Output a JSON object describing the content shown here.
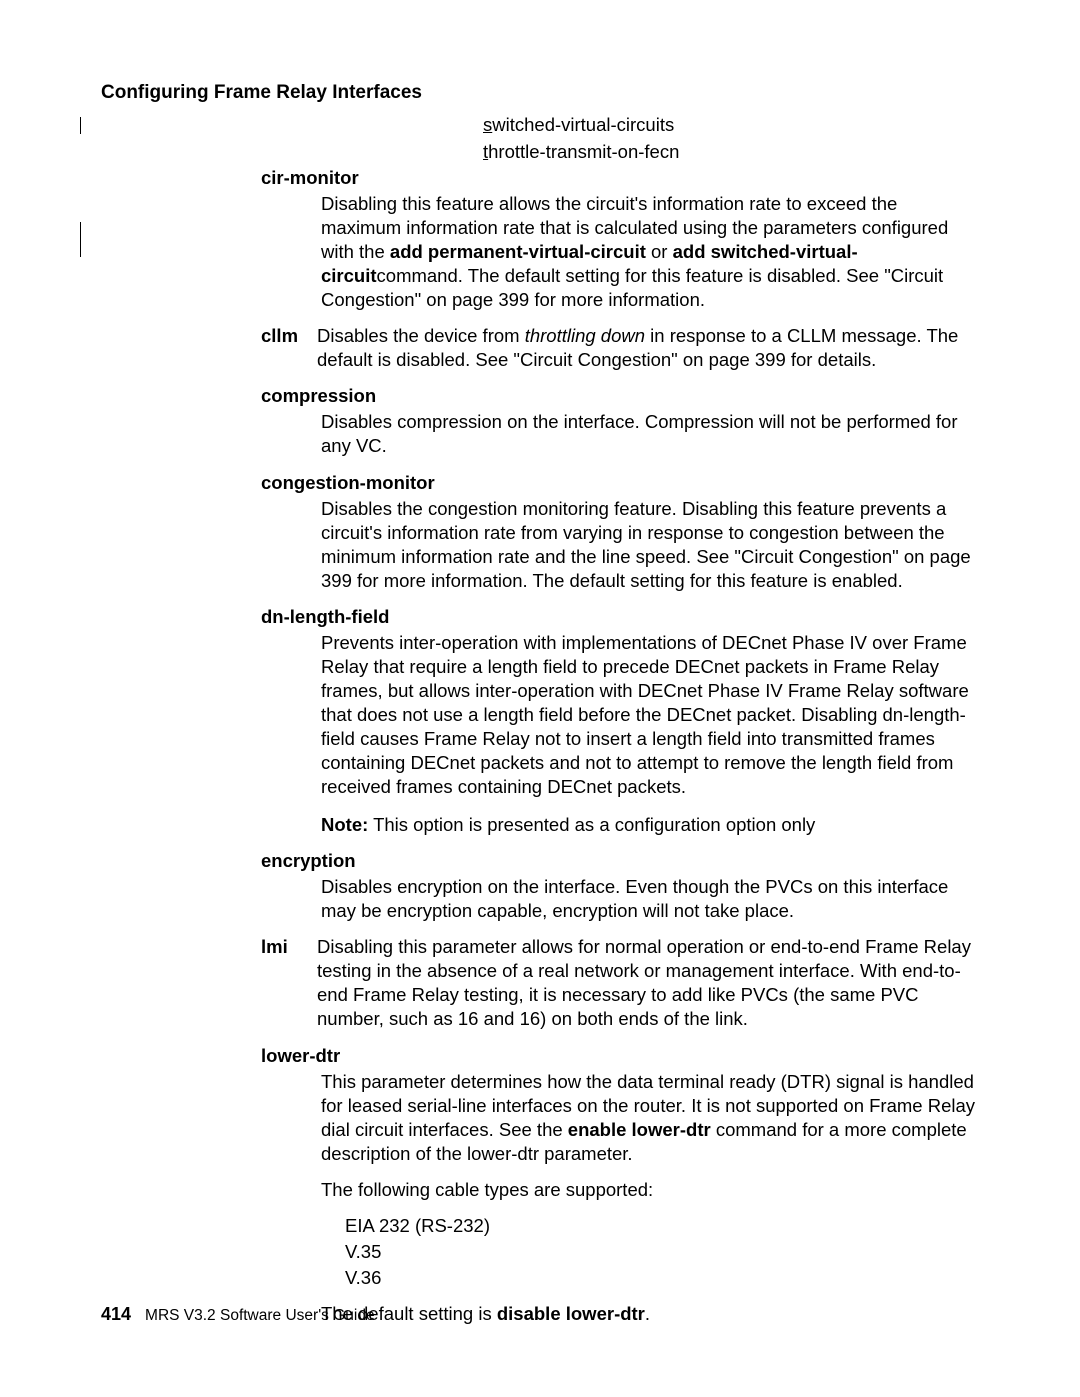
{
  "page_title": "Configuring Frame Relay Interfaces",
  "top_options": {
    "o1": "switched-virtual-circuits",
    "o2": "throttle-transmit-on-fecn"
  },
  "cir_monitor": {
    "term": "cir-monitor",
    "p1a": "Disabling this feature allows the circuit's information rate to exceed the maximum information rate that is calculated using the parameters configured with the ",
    "b1": "add permanent-virtual-circuit",
    "p1b": " or ",
    "b2": "add switched-virtual-circuit",
    "p1c": "command. The default setting for this feature is disabled. See \"Circuit Congestion\" on page 399  for more information."
  },
  "cllm": {
    "term": "cllm",
    "p1a": "Disables the device from ",
    "it1": "throttling down",
    "p1b": " in response to a CLLM message. The default is disabled. See \"Circuit Congestion\" on page 399 for details."
  },
  "compression": {
    "term": "compression",
    "p1": "Disables compression on the interface. Compression will not be performed for any VC."
  },
  "congestion": {
    "term": "congestion-monitor",
    "p1": "Disables the congestion monitoring feature. Disabling this feature prevents a circuit's information rate from varying in response to congestion between the minimum information rate and the line speed. See \"Circuit Congestion\"  on page 399 for more information. The default setting for this feature is enabled."
  },
  "dn": {
    "term": "dn-length-field",
    "p1": "Prevents inter-operation with implementations of DECnet Phase IV over Frame Relay that require a length field to precede DECnet packets in Frame Relay frames, but allows inter-operation with DECnet Phase IV Frame Relay software that does not use a length field before the DECnet packet. Disabling dn-length-field causes Frame Relay not to insert a length field into transmitted frames containing DECnet packets and not to attempt to remove the length field from received frames containing DECnet packets.",
    "note_label": "Note:",
    "note_text": "  This option is presented as a configuration option only"
  },
  "encryption": {
    "term": "encryption",
    "p1": "Disables encryption on the interface. Even though the PVCs on this interface may be encryption capable, encryption will not take place."
  },
  "lmi": {
    "term": "lmi",
    "p1": "Disabling this parameter allows for normal operation or end-to-end Frame Relay testing in the absence of a real network or management interface. With end-to-end Frame Relay testing, it is necessary to add like PVCs (the same PVC number, such as 16 and 16) on both ends of the link."
  },
  "lower_dtr": {
    "term": "lower-dtr",
    "p1a": "This parameter determines how the data terminal ready (DTR) signal is handled for leased serial-line interfaces on the router. It is not supported on Frame Relay dial circuit interfaces. See the ",
    "b1": "enable lower-dtr",
    "p1b": " command for a more complete description of the lower-dtr parameter.",
    "p2": "The following cable types are supported:",
    "cables": {
      "c1": "EIA 232 (RS-232)",
      "c2": "V.35",
      "c3": "V.36"
    },
    "p3a": "The default setting is ",
    "b2": "disable lower-dtr",
    "p3b": "."
  },
  "footer": {
    "page_number": "414",
    "doc_title": "MRS V3.2 Software User's Guide"
  }
}
